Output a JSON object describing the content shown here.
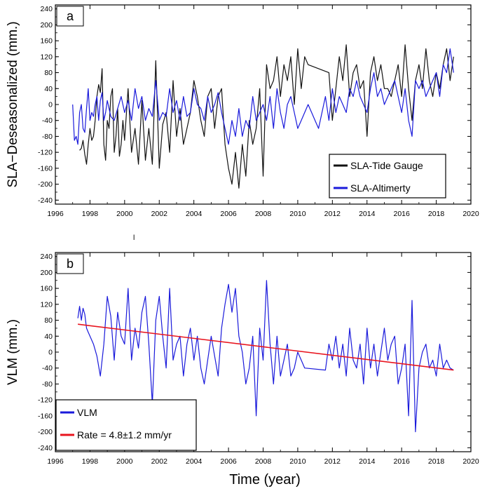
{
  "x_title": "Time (year)",
  "stray_mark": "l",
  "colors": {
    "tide": "#111111",
    "alt": "#1a1adb",
    "vlm": "#1a1adb",
    "rate": "#e8141e",
    "axis": "#000000"
  },
  "chart_data": [
    {
      "panel": "a",
      "type": "line",
      "ylabel": "SLA−Deseasonalized (mm.)",
      "xlim": [
        1996,
        2020
      ],
      "ylim": [
        -250,
        250
      ],
      "xticks": [
        1996,
        1998,
        2000,
        2002,
        2004,
        2006,
        2008,
        2010,
        2012,
        2014,
        2016,
        2018,
        2020
      ],
      "yticks": [
        -240,
        -200,
        -160,
        -120,
        -80,
        -40,
        0,
        40,
        80,
        120,
        160,
        200,
        240
      ],
      "legend_position": "bottom-right",
      "series": [
        {
          "name": "SLA-Tide Gauge",
          "color": "#111111",
          "x": [
            1997.4,
            1997.5,
            1997.6,
            1997.7,
            1997.8,
            1997.9,
            1998.0,
            1998.1,
            1998.2,
            1998.3,
            1998.4,
            1998.5,
            1998.6,
            1998.7,
            1998.8,
            1998.9,
            1999.0,
            1999.1,
            1999.2,
            1999.3,
            1999.4,
            1999.5,
            1999.6,
            1999.7,
            1999.8,
            1999.9,
            2000.0,
            2000.2,
            2000.4,
            2000.6,
            2000.8,
            2001.0,
            2001.2,
            2001.4,
            2001.6,
            2001.8,
            2002.0,
            2002.2,
            2002.4,
            2002.6,
            2002.8,
            2003.0,
            2003.2,
            2003.4,
            2003.6,
            2003.8,
            2004.0,
            2004.2,
            2004.4,
            2004.6,
            2004.8,
            2005.0,
            2005.2,
            2005.4,
            2005.6,
            2005.8,
            2006.0,
            2006.2,
            2006.4,
            2006.6,
            2006.8,
            2007.0,
            2007.2,
            2007.4,
            2007.6,
            2007.8,
            2008.0,
            2008.2,
            2008.4,
            2008.6,
            2008.8,
            2009.0,
            2009.2,
            2009.4,
            2009.6,
            2009.8,
            2010.0,
            2010.2,
            2010.4,
            2010.6,
            2011.8,
            2012.0,
            2012.2,
            2012.4,
            2012.6,
            2012.8,
            2013.0,
            2013.2,
            2013.4,
            2013.6,
            2013.8,
            2014.0,
            2014.2,
            2014.4,
            2014.6,
            2014.8,
            2015.0,
            2015.2,
            2015.4,
            2015.6,
            2015.8,
            2016.0,
            2016.2,
            2016.4,
            2016.6,
            2016.8,
            2017.0,
            2017.2,
            2017.4,
            2017.6,
            2017.8,
            2018.0,
            2018.2,
            2018.4,
            2018.6,
            2018.8,
            2019.0
          ],
          "values": [
            -115,
            -110,
            -90,
            -125,
            -150,
            -100,
            -60,
            -90,
            -80,
            -40,
            20,
            50,
            30,
            90,
            -100,
            -140,
            -40,
            -60,
            20,
            40,
            -120,
            -80,
            -10,
            -130,
            -100,
            -40,
            -90,
            40,
            -120,
            -60,
            -150,
            10,
            -140,
            -60,
            -150,
            110,
            -160,
            -50,
            -20,
            -120,
            60,
            -80,
            -10,
            -100,
            -60,
            -20,
            60,
            20,
            -40,
            -80,
            20,
            40,
            -60,
            20,
            40,
            -100,
            -160,
            -200,
            -120,
            -210,
            -100,
            -180,
            -40,
            -100,
            -60,
            40,
            -180,
            100,
            40,
            60,
            120,
            20,
            100,
            60,
            120,
            0,
            140,
            40,
            120,
            100,
            80,
            -40,
            40,
            120,
            60,
            150,
            20,
            80,
            100,
            40,
            60,
            -80,
            80,
            120,
            60,
            100,
            40,
            40,
            20,
            60,
            100,
            20,
            150,
            40,
            -40,
            60,
            100,
            40,
            140,
            60,
            20,
            80,
            40,
            100,
            140,
            60,
            120
          ]
        },
        {
          "name": "SLA-Altimerty",
          "color": "#1a1adb",
          "x": [
            1997.0,
            1997.1,
            1997.2,
            1997.3,
            1997.4,
            1997.5,
            1997.6,
            1997.7,
            1997.8,
            1997.9,
            1998.0,
            1998.1,
            1998.2,
            1998.3,
            1998.4,
            1998.5,
            1998.6,
            1998.7,
            1998.8,
            1998.9,
            1999.0,
            1999.2,
            1999.4,
            1999.6,
            1999.8,
            2000.0,
            2000.2,
            2000.4,
            2000.6,
            2000.8,
            2001.0,
            2001.2,
            2001.4,
            2001.6,
            2001.8,
            2002.0,
            2002.2,
            2002.4,
            2002.6,
            2002.8,
            2003.0,
            2003.2,
            2003.4,
            2003.6,
            2003.8,
            2004.0,
            2004.2,
            2004.4,
            2004.6,
            2004.8,
            2005.0,
            2005.2,
            2005.4,
            2005.6,
            2005.8,
            2006.0,
            2006.2,
            2006.4,
            2006.6,
            2006.8,
            2007.0,
            2007.2,
            2007.4,
            2007.6,
            2007.8,
            2008.0,
            2008.2,
            2008.4,
            2008.6,
            2008.8,
            2009.0,
            2009.2,
            2009.4,
            2009.6,
            2009.8,
            2010.0,
            2010.2,
            2010.4,
            2010.6,
            2010.8,
            2011.0,
            2011.2,
            2011.4,
            2011.6,
            2011.8,
            2012.0,
            2012.2,
            2012.4,
            2012.6,
            2012.8,
            2013.0,
            2013.2,
            2013.4,
            2013.6,
            2013.8,
            2014.0,
            2014.2,
            2014.4,
            2014.6,
            2014.8,
            2015.0,
            2015.2,
            2015.4,
            2015.6,
            2015.8,
            2016.0,
            2016.2,
            2016.4,
            2016.6,
            2016.8,
            2017.0,
            2017.2,
            2017.4,
            2017.6,
            2017.8,
            2018.0,
            2018.2,
            2018.4,
            2018.6,
            2018.8,
            2019.0
          ],
          "values": [
            0,
            -90,
            -80,
            -100,
            -20,
            0,
            -60,
            -70,
            -10,
            40,
            -40,
            -20,
            -30,
            0,
            20,
            -40,
            10,
            30,
            -40,
            -20,
            10,
            -30,
            -40,
            -10,
            20,
            -20,
            10,
            -40,
            40,
            -10,
            20,
            -40,
            -10,
            -30,
            60,
            -40,
            -20,
            -30,
            40,
            -20,
            10,
            -40,
            20,
            -30,
            -20,
            40,
            0,
            -10,
            -40,
            20,
            -20,
            0,
            30,
            -20,
            -60,
            -100,
            -40,
            -80,
            -10,
            -80,
            -40,
            -60,
            20,
            -40,
            -20,
            0,
            -40,
            20,
            -60,
            40,
            -20,
            -60,
            0,
            20,
            -20,
            -60,
            -40,
            -20,
            0,
            -20,
            -40,
            -60,
            -20,
            20,
            -40,
            40,
            -20,
            20,
            0,
            -20,
            40,
            20,
            60,
            20,
            0,
            -20,
            40,
            80,
            20,
            40,
            0,
            20,
            40,
            60,
            20,
            -20,
            40,
            -40,
            -80,
            60,
            40,
            60,
            20,
            40,
            60,
            80,
            20,
            100,
            80,
            140,
            80
          ]
        }
      ]
    },
    {
      "panel": "b",
      "type": "line",
      "ylabel": "VLM (mm.)",
      "xlabel": "Time (year)",
      "xlim": [
        1996,
        2020
      ],
      "ylim": [
        -250,
        250
      ],
      "xticks": [
        1996,
        1998,
        2000,
        2002,
        2004,
        2006,
        2008,
        2010,
        2012,
        2014,
        2016,
        2018,
        2020
      ],
      "yticks": [
        -240,
        -200,
        -160,
        -120,
        -80,
        -40,
        0,
        40,
        80,
        120,
        160,
        200,
        240
      ],
      "legend_position": "bottom-left",
      "series": [
        {
          "name": "VLM",
          "color": "#1a1adb",
          "x": [
            1997.3,
            1997.4,
            1997.5,
            1997.6,
            1997.7,
            1997.8,
            1997.9,
            1998.0,
            1998.2,
            1998.4,
            1998.6,
            1998.8,
            1999.0,
            1999.2,
            1999.4,
            1999.6,
            1999.8,
            2000.0,
            2000.2,
            2000.4,
            2000.6,
            2000.8,
            2001.0,
            2001.2,
            2001.4,
            2001.6,
            2001.8,
            2002.0,
            2002.2,
            2002.4,
            2002.6,
            2002.8,
            2003.0,
            2003.2,
            2003.4,
            2003.6,
            2003.8,
            2004.0,
            2004.2,
            2004.4,
            2004.6,
            2004.8,
            2005.0,
            2005.2,
            2005.4,
            2005.6,
            2005.8,
            2006.0,
            2006.2,
            2006.4,
            2006.6,
            2006.8,
            2007.0,
            2007.2,
            2007.4,
            2007.6,
            2007.8,
            2008.0,
            2008.2,
            2008.4,
            2008.6,
            2008.8,
            2009.0,
            2009.2,
            2009.4,
            2009.6,
            2009.8,
            2010.0,
            2010.2,
            2010.4,
            2011.6,
            2011.8,
            2012.0,
            2012.2,
            2012.4,
            2012.6,
            2012.8,
            2013.0,
            2013.2,
            2013.4,
            2013.6,
            2013.8,
            2014.0,
            2014.2,
            2014.4,
            2014.6,
            2014.8,
            2015.0,
            2015.2,
            2015.4,
            2015.6,
            2015.8,
            2016.0,
            2016.2,
            2016.4,
            2016.6,
            2016.8,
            2017.0,
            2017.2,
            2017.4,
            2017.6,
            2017.8,
            2018.0,
            2018.2,
            2018.4,
            2018.6,
            2018.8,
            2019.0
          ],
          "values": [
            85,
            115,
            80,
            110,
            95,
            60,
            50,
            40,
            20,
            -10,
            -60,
            20,
            140,
            90,
            -20,
            100,
            40,
            20,
            160,
            -20,
            60,
            10,
            100,
            140,
            20,
            -130,
            80,
            140,
            40,
            -40,
            160,
            -20,
            20,
            40,
            -60,
            20,
            60,
            -20,
            40,
            -40,
            -80,
            -20,
            40,
            -10,
            -60,
            60,
            120,
            170,
            100,
            160,
            40,
            0,
            -80,
            -40,
            40,
            -160,
            60,
            -20,
            180,
            20,
            -80,
            40,
            -60,
            -20,
            20,
            -60,
            -40,
            0,
            -20,
            -40,
            -45,
            20,
            -20,
            40,
            -40,
            20,
            -60,
            60,
            -20,
            -40,
            20,
            -80,
            60,
            -40,
            20,
            -60,
            0,
            60,
            -20,
            20,
            40,
            -80,
            -40,
            20,
            -160,
            130,
            -200,
            -40,
            0,
            20,
            -40,
            -20,
            -60,
            20,
            -40,
            -20,
            -40,
            -45
          ]
        },
        {
          "name": "Rate = 4.8±1.2 mm/yr",
          "color": "#e8141e",
          "x": [
            1997.3,
            2019.0
          ],
          "values": [
            70,
            -45
          ]
        }
      ]
    }
  ]
}
